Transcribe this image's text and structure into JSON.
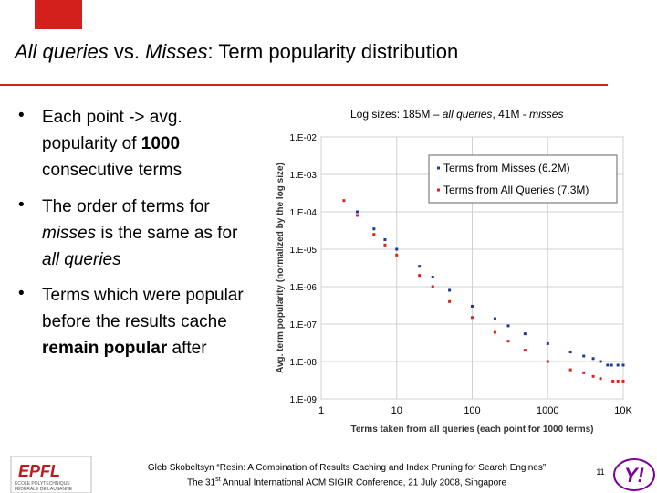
{
  "slide": {
    "title": [
      "All queries",
      " vs. ",
      "Misses",
      ": Term popularity distribution"
    ],
    "bullets": [
      [
        "Each point -> avg. popularity of ",
        "1000",
        " consecutive terms"
      ],
      [
        "The order of terms for ",
        "misses",
        " is the same as for ",
        "all queries"
      ],
      [
        "Terms which were popular before the results cache ",
        "remain popular",
        " after"
      ]
    ],
    "chart_note": [
      "Log sizes: 185M – ",
      "all queries",
      ", 41M - ",
      "misses"
    ],
    "footer": {
      "line1": "Gleb Skobeltsyn “Resin: A Combination of Results Caching and Index Pruning for Search Engines”",
      "line2": [
        "The 31",
        "st",
        " Annual International ACM SIGIR Conference, 21 July 2008, Singapore"
      ],
      "page": "11"
    },
    "logo_left": [
      "EPFL",
      "ÉCOLE POLYTECHNIQUE",
      "FÉDÉRALE DE LAUSANNE"
    ],
    "logo_right": "Y!"
  },
  "chart_data": {
    "type": "scatter",
    "xlabel": "Terms taken from all queries (each point for 1000 terms)",
    "ylabel": "Avg. term popularity (normalized by the log size)",
    "xlog": true,
    "ylog": true,
    "grid": true,
    "legend": "upper right",
    "xlim": [
      1,
      10000
    ],
    "ylim": [
      1e-09,
      0.01
    ],
    "xticks": [
      1,
      10,
      100,
      1000,
      {
        "value": 10000,
        "label": "10K"
      }
    ],
    "yticks": [
      {
        "value": 1e-09,
        "label": "1.E-09"
      },
      {
        "value": 1e-08,
        "label": "1.E-08"
      },
      {
        "value": 1e-07,
        "label": "1.E-07"
      },
      {
        "value": 1e-06,
        "label": "1.E-06"
      },
      {
        "value": 1e-05,
        "label": "1.E-05"
      },
      {
        "value": 0.0001,
        "label": "1.E-04"
      },
      {
        "value": 0.001,
        "label": "1.E-03"
      },
      {
        "value": 0.01,
        "label": "1.E-02"
      }
    ],
    "series": [
      {
        "name": "Terms from Misses (6.2M)",
        "color": "#1f3a93",
        "x": [
          3,
          5,
          7,
          10,
          20,
          30,
          50,
          100,
          200,
          300,
          500,
          1000,
          2000,
          3000,
          4000,
          5000,
          6200,
          7000,
          8500,
          10000
        ],
        "values": [
          0.0001,
          3.5e-05,
          1.8e-05,
          1e-05,
          3.5e-06,
          1.8e-06,
          8e-07,
          3e-07,
          1.4e-07,
          9e-08,
          5.5e-08,
          3e-08,
          1.8e-08,
          1.4e-08,
          1.2e-08,
          1e-08,
          8e-09,
          8e-09,
          8e-09,
          8e-09
        ]
      },
      {
        "name": "Terms from All Queries (7.3M)",
        "color": "#e0201b",
        "x": [
          2,
          3,
          5,
          7,
          10,
          20,
          30,
          50,
          100,
          200,
          300,
          500,
          1000,
          2000,
          3000,
          4000,
          5000,
          7300,
          8500,
          10000
        ],
        "values": [
          0.0002,
          8e-05,
          2.5e-05,
          1.3e-05,
          7e-06,
          2e-06,
          1e-06,
          4e-07,
          1.5e-07,
          6e-08,
          3.5e-08,
          2e-08,
          1e-08,
          6e-09,
          5e-09,
          4e-09,
          3.5e-09,
          3e-09,
          3e-09,
          3e-09
        ]
      }
    ]
  }
}
